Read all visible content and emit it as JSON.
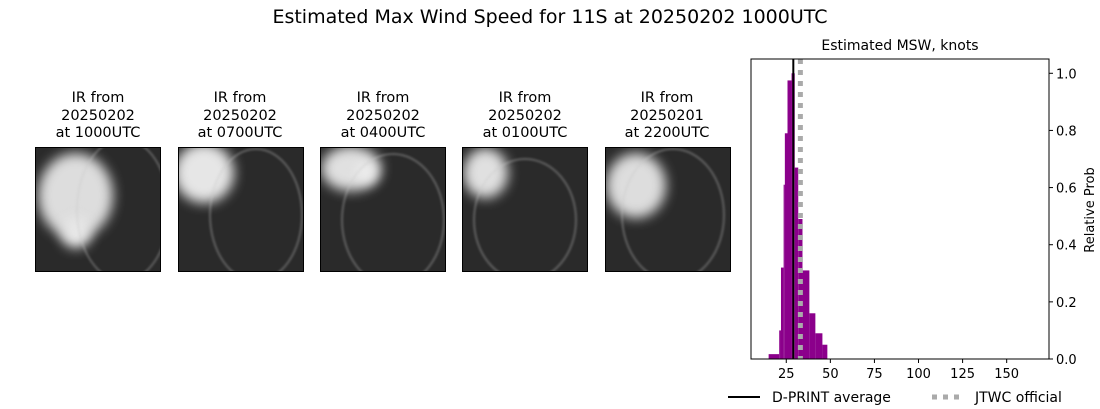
{
  "title": "Estimated Max Wind Speed for 11S at 20250202 1000UTC",
  "panels": [
    {
      "line1": "IR from",
      "line2": "20250202",
      "line3": "at 1000UTC"
    },
    {
      "line1": "IR from",
      "line2": "20250202",
      "line3": "at 0700UTC"
    },
    {
      "line1": "IR from",
      "line2": "20250202",
      "line3": "at 0400UTC"
    },
    {
      "line1": "IR from",
      "line2": "20250202",
      "line3": "at 0100UTC"
    },
    {
      "line1": "IR from",
      "line2": "20250201",
      "line3": "at 2200UTC"
    }
  ],
  "chart_data": {
    "type": "bar",
    "title": "Estimated MSW, knots",
    "ylabel": "Relative Prob",
    "xlim": [
      5,
      174
    ],
    "ylim": [
      0,
      1.05
    ],
    "xticks": [
      25,
      50,
      75,
      100,
      125,
      150
    ],
    "yticks": [
      0.0,
      0.2,
      0.4,
      0.6,
      0.8,
      1.0
    ],
    "bar_color": "#8b008b",
    "bins": [
      {
        "start": 15,
        "end": 21,
        "value": 0.017
      },
      {
        "start": 21,
        "end": 22,
        "value": 0.1
      },
      {
        "start": 22,
        "end": 23.5,
        "value": 0.32
      },
      {
        "start": 23.5,
        "end": 24.2,
        "value": 0.61
      },
      {
        "start": 24.2,
        "end": 25.7,
        "value": 0.79
      },
      {
        "start": 25.7,
        "end": 28,
        "value": 0.975
      },
      {
        "start": 28,
        "end": 29.8,
        "value": 1.0
      },
      {
        "start": 29.8,
        "end": 31.8,
        "value": 0.67
      },
      {
        "start": 31.8,
        "end": 34.2,
        "value": 0.49
      },
      {
        "start": 34.2,
        "end": 38.1,
        "value": 0.31
      },
      {
        "start": 38.1,
        "end": 41.5,
        "value": 0.16
      },
      {
        "start": 41.5,
        "end": 45.5,
        "value": 0.09
      },
      {
        "start": 45.5,
        "end": 48.3,
        "value": 0.05
      }
    ],
    "dprint_average": 29,
    "jtwc_official": 33,
    "legend": [
      {
        "label": "D-PRINT average",
        "color": "#000000",
        "style": "solid"
      },
      {
        "label": "JTWC official",
        "color": "#aaaaaa",
        "style": "dotted"
      }
    ],
    "legend_placement": "bottom"
  }
}
